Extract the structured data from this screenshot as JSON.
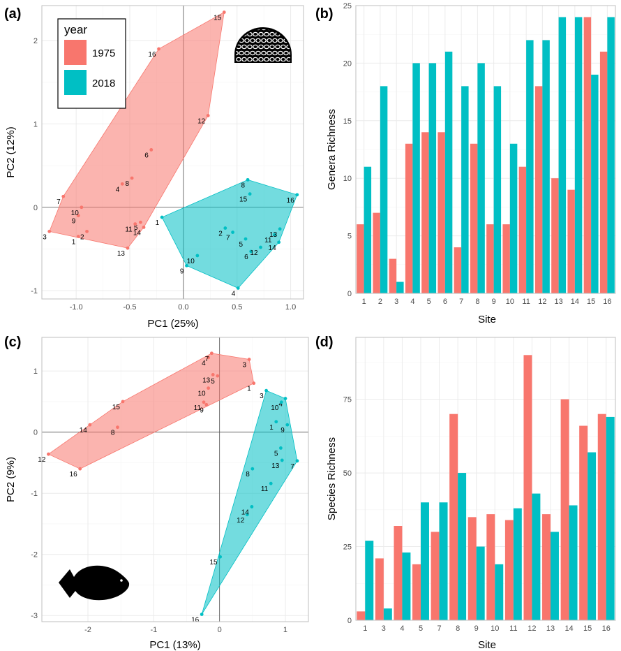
{
  "colors": {
    "y1975": "#f8766d",
    "y2018": "#00bfc4",
    "hull1975": "#f8766d",
    "hull2018": "#00bfc4"
  },
  "icons": {
    "a": "brain-coral-icon",
    "c": "surgeonfish-icon"
  },
  "legend": {
    "title": "year",
    "items": [
      "1975",
      "2018"
    ]
  },
  "chart_data": [
    {
      "panel": "(a)",
      "type": "scatter",
      "xlabel": "PC1 (25%)",
      "ylabel": "PC2 (12%)",
      "xlim": [
        -1.32,
        1.12
      ],
      "ylim": [
        -1.1,
        2.42
      ],
      "xticks": [
        -1.0,
        -0.5,
        0.0,
        0.5,
        1.0
      ],
      "xtick_labels": [
        "-1.0",
        "-0.5",
        "0.0",
        "0.5",
        "1.0"
      ],
      "yticks": [
        -1,
        0,
        1,
        2
      ],
      "ytick_labels": [
        "-1",
        "0",
        "1",
        "2"
      ],
      "zero_lines": true,
      "series": [
        {
          "name": "1975",
          "points": [
            {
              "label": "1",
              "x": -0.98,
              "y": -0.35
            },
            {
              "label": "2",
              "x": -0.9,
              "y": -0.29
            },
            {
              "label": "3",
              "x": -1.25,
              "y": -0.29
            },
            {
              "label": "4",
              "x": -0.57,
              "y": 0.28
            },
            {
              "label": "5",
              "x": -0.4,
              "y": -0.18
            },
            {
              "label": "6",
              "x": -0.3,
              "y": 0.69
            },
            {
              "label": "7",
              "x": -1.12,
              "y": 0.13
            },
            {
              "label": "8",
              "x": -0.48,
              "y": 0.35
            },
            {
              "label": "9",
              "x": -0.98,
              "y": -0.1
            },
            {
              "label": "10",
              "x": -0.95,
              "y": 0.0
            },
            {
              "label": "11",
              "x": -0.45,
              "y": -0.2
            },
            {
              "label": "12",
              "x": 0.23,
              "y": 1.1
            },
            {
              "label": "13",
              "x": -0.52,
              "y": -0.49
            },
            {
              "label": "14",
              "x": -0.37,
              "y": -0.24
            },
            {
              "label": "15",
              "x": 0.38,
              "y": 2.34
            },
            {
              "label": "16",
              "x": -0.23,
              "y": 1.9
            }
          ]
        },
        {
          "name": "2018",
          "points": [
            {
              "label": "1",
              "x": -0.2,
              "y": -0.12
            },
            {
              "label": "2",
              "x": 0.39,
              "y": -0.25
            },
            {
              "label": "4",
              "x": 0.51,
              "y": -0.97
            },
            {
              "label": "5",
              "x": 0.58,
              "y": -0.38
            },
            {
              "label": "6",
              "x": 0.63,
              "y": -0.53
            },
            {
              "label": "7",
              "x": 0.46,
              "y": -0.3
            },
            {
              "label": "8",
              "x": 0.6,
              "y": 0.33
            },
            {
              "label": "9",
              "x": 0.03,
              "y": -0.7
            },
            {
              "label": "10",
              "x": 0.13,
              "y": -0.58
            },
            {
              "label": "11",
              "x": 0.85,
              "y": -0.33
            },
            {
              "label": "12",
              "x": 0.72,
              "y": -0.48
            },
            {
              "label": "13",
              "x": 0.9,
              "y": -0.26
            },
            {
              "label": "14",
              "x": 0.89,
              "y": -0.42
            },
            {
              "label": "15",
              "x": 0.62,
              "y": 0.16
            },
            {
              "label": "16",
              "x": 1.06,
              "y": 0.15
            }
          ]
        }
      ]
    },
    {
      "panel": "(b)",
      "type": "bar",
      "xlabel": "Site",
      "ylabel": "Genera Richness",
      "ylim": [
        0,
        25
      ],
      "yticks": [
        0,
        5,
        10,
        15,
        20,
        25
      ],
      "categories": [
        "1",
        "2",
        "3",
        "4",
        "5",
        "6",
        "7",
        "8",
        "9",
        "10",
        "11",
        "12",
        "13",
        "14",
        "15",
        "16"
      ],
      "series": [
        {
          "name": "1975",
          "values": [
            6,
            7,
            3,
            13,
            14,
            14,
            4,
            13,
            6,
            6,
            11,
            18,
            10,
            9,
            24,
            21
          ]
        },
        {
          "name": "2018",
          "values": [
            11,
            18,
            1,
            20,
            20,
            21,
            18,
            20,
            18,
            13,
            22,
            22,
            24,
            24,
            19,
            24
          ]
        }
      ]
    },
    {
      "panel": "(c)",
      "type": "scatter",
      "xlabel": "PC1 (13%)",
      "ylabel": "PC2 (9%)",
      "xlim": [
        -2.7,
        1.35
      ],
      "ylim": [
        -3.1,
        1.55
      ],
      "xticks": [
        -2,
        -1,
        0,
        1
      ],
      "xtick_labels": [
        "-2",
        "-1",
        "0",
        "1"
      ],
      "yticks": [
        -3,
        -2,
        -1,
        0,
        1
      ],
      "ytick_labels": [
        "-3",
        "-2",
        "-1",
        "0",
        "1"
      ],
      "zero_lines": true,
      "series": [
        {
          "name": "1975",
          "points": [
            {
              "label": "1",
              "x": 0.52,
              "y": 0.8
            },
            {
              "label": "3",
              "x": 0.45,
              "y": 1.19
            },
            {
              "label": "4",
              "x": -0.17,
              "y": 1.22
            },
            {
              "label": "5",
              "x": -0.03,
              "y": 0.92
            },
            {
              "label": "7",
              "x": -0.12,
              "y": 1.29
            },
            {
              "label": "8",
              "x": -1.55,
              "y": 0.08
            },
            {
              "label": "9",
              "x": -0.2,
              "y": 0.45
            },
            {
              "label": "10",
              "x": -0.17,
              "y": 0.72
            },
            {
              "label": "11",
              "x": -0.24,
              "y": 0.49
            },
            {
              "label": "12",
              "x": -2.6,
              "y": -0.36
            },
            {
              "label": "13",
              "x": -0.1,
              "y": 0.94
            },
            {
              "label": "14",
              "x": -1.97,
              "y": 0.12
            },
            {
              "label": "15",
              "x": -1.47,
              "y": 0.5
            },
            {
              "label": "16",
              "x": -2.12,
              "y": -0.6
            }
          ]
        },
        {
          "name": "2018",
          "points": [
            {
              "label": "1",
              "x": 0.86,
              "y": 0.17
            },
            {
              "label": "3",
              "x": 0.71,
              "y": 0.68
            },
            {
              "label": "4",
              "x": 1.0,
              "y": 0.55
            },
            {
              "label": "5",
              "x": 0.93,
              "y": -0.26
            },
            {
              "label": "7",
              "x": 1.18,
              "y": -0.47
            },
            {
              "label": "8",
              "x": 0.5,
              "y": -0.6
            },
            {
              "label": "9",
              "x": 1.03,
              "y": 0.12
            },
            {
              "label": "10",
              "x": 0.94,
              "y": 0.49
            },
            {
              "label": "11",
              "x": 0.78,
              "y": -0.84
            },
            {
              "label": "12",
              "x": 0.42,
              "y": -1.35
            },
            {
              "label": "13",
              "x": 0.95,
              "y": -0.46
            },
            {
              "label": "14",
              "x": 0.49,
              "y": -1.22
            },
            {
              "label": "15",
              "x": 0.01,
              "y": -2.04
            },
            {
              "label": "16",
              "x": -0.27,
              "y": -2.98
            }
          ]
        }
      ]
    },
    {
      "panel": "(d)",
      "type": "bar",
      "xlabel": "Site",
      "ylabel": "Species Richness",
      "ylim": [
        0,
        96
      ],
      "yticks": [
        0,
        25,
        50,
        75
      ],
      "categories": [
        "1",
        "3",
        "4",
        "5",
        "7",
        "8",
        "9",
        "10",
        "11",
        "12",
        "13",
        "14",
        "15",
        "16"
      ],
      "series": [
        {
          "name": "1975",
          "values": [
            3,
            21,
            32,
            19,
            30,
            70,
            35,
            36,
            34,
            90,
            36,
            75,
            66,
            70
          ]
        },
        {
          "name": "2018",
          "values": [
            27,
            4,
            23,
            40,
            40,
            50,
            25,
            19,
            38,
            43,
            30,
            39,
            57,
            69
          ]
        }
      ]
    }
  ]
}
